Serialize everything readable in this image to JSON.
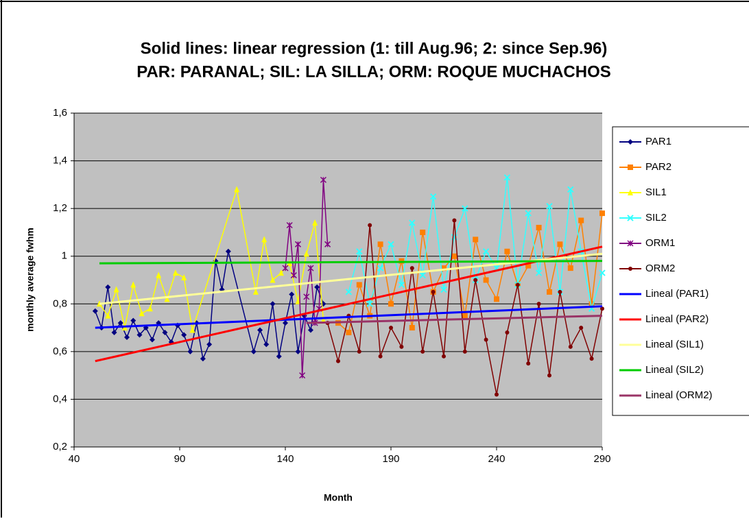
{
  "chart_data": {
    "type": "line",
    "title": "Solid lines: linear regression (1: till Aug.96; 2: since Sep.96)",
    "subtitle": "PAR: PARANAL; SIL: LA SILLA; ORM: ROQUE MUCHACHOS",
    "x_label": "Month",
    "y_label": "monthly average fwhm",
    "xlim": [
      40,
      290
    ],
    "xticks": [
      40,
      90,
      140,
      190,
      240,
      290
    ],
    "ylim": [
      0.2,
      1.6
    ],
    "yticks": [
      {
        "value": 0.2,
        "label": "0,2"
      },
      {
        "value": 0.4,
        "label": "0,4"
      },
      {
        "value": 0.6,
        "label": "0,6"
      },
      {
        "value": 0.8,
        "label": "0,8"
      },
      1,
      {
        "value": 1.2,
        "label": "1,2"
      },
      {
        "value": 1.4,
        "label": "1,4"
      },
      {
        "value": 1.6,
        "label": "1,6"
      }
    ],
    "grid": true,
    "legend": "right",
    "series": [
      {
        "name": "PAR1",
        "color": "#000080",
        "marker": "diamond",
        "x": [
          50,
          53,
          56,
          59,
          62,
          65,
          68,
          71,
          74,
          77,
          80,
          83,
          86,
          89,
          92,
          95,
          98,
          101,
          104,
          107,
          110,
          113,
          125,
          128,
          131,
          134,
          137,
          140,
          143,
          146,
          149,
          152,
          155,
          158
        ],
        "values": [
          0.77,
          0.7,
          0.87,
          0.68,
          0.72,
          0.66,
          0.73,
          0.67,
          0.7,
          0.65,
          0.72,
          0.68,
          0.64,
          0.71,
          0.67,
          0.6,
          0.72,
          0.57,
          0.63,
          0.98,
          0.86,
          1.02,
          0.6,
          0.69,
          0.63,
          0.8,
          0.58,
          0.72,
          0.84,
          0.6,
          0.75,
          0.69,
          0.87,
          0.8
        ]
      },
      {
        "name": "PAR2",
        "color": "#ff8000",
        "marker": "square",
        "x": [
          165,
          170,
          175,
          180,
          185,
          190,
          195,
          200,
          205,
          210,
          215,
          220,
          225,
          230,
          235,
          240,
          245,
          250,
          255,
          260,
          265,
          270,
          275,
          280,
          285,
          290
        ],
        "values": [
          0.72,
          0.68,
          0.88,
          0.75,
          1.05,
          0.8,
          0.98,
          0.7,
          1.1,
          0.85,
          0.95,
          1.0,
          0.75,
          1.07,
          0.9,
          0.82,
          1.02,
          0.88,
          0.96,
          1.12,
          0.85,
          1.05,
          0.95,
          1.15,
          0.8,
          1.18
        ]
      },
      {
        "name": "SIL1",
        "color": "#ffff00",
        "marker": "triangle",
        "x": [
          52,
          56,
          60,
          64,
          68,
          72,
          76,
          80,
          84,
          88,
          92,
          96,
          117,
          126,
          130,
          134,
          138,
          142,
          146,
          150,
          154,
          158
        ],
        "values": [
          0.8,
          0.75,
          0.86,
          0.7,
          0.88,
          0.76,
          0.78,
          0.92,
          0.82,
          0.93,
          0.91,
          0.69,
          1.28,
          0.85,
          1.07,
          0.9,
          0.93,
          0.97,
          0.81,
          1.01,
          1.14,
          0.73
        ]
      },
      {
        "name": "SIL2",
        "color": "#33ffff",
        "marker": "x",
        "x": [
          170,
          175,
          180,
          185,
          190,
          195,
          200,
          205,
          210,
          215,
          220,
          225,
          230,
          235,
          240,
          245,
          250,
          255,
          260,
          265,
          270,
          275,
          280,
          285,
          290
        ],
        "values": [
          0.85,
          1.02,
          0.8,
          0.95,
          1.05,
          0.88,
          1.14,
          0.92,
          1.25,
          0.86,
          1.08,
          1.2,
          0.9,
          1.02,
          0.95,
          1.33,
          0.88,
          1.18,
          0.93,
          1.21,
          0.85,
          1.28,
          1.02,
          0.78,
          0.93
        ]
      },
      {
        "name": "ORM1",
        "color": "#800080",
        "marker": "star",
        "x": [
          140,
          142,
          144,
          146,
          148,
          150,
          152,
          154,
          156,
          158,
          160
        ],
        "values": [
          0.95,
          1.13,
          0.92,
          1.05,
          0.5,
          0.83,
          0.95,
          0.72,
          0.78,
          1.32,
          1.05
        ]
      },
      {
        "name": "ORM2",
        "color": "#800000",
        "marker": "circle",
        "x": [
          160,
          165,
          170,
          175,
          180,
          185,
          190,
          195,
          200,
          205,
          210,
          215,
          220,
          225,
          230,
          235,
          240,
          245,
          250,
          255,
          260,
          265,
          270,
          275,
          280,
          285,
          290
        ],
        "values": [
          0.72,
          0.56,
          0.75,
          0.6,
          1.13,
          0.58,
          0.7,
          0.62,
          0.95,
          0.6,
          0.85,
          0.58,
          1.15,
          0.6,
          0.9,
          0.65,
          0.42,
          0.68,
          0.88,
          0.55,
          0.8,
          0.5,
          0.85,
          0.62,
          0.7,
          0.57,
          0.78
        ]
      },
      {
        "name": "Lineal (PAR1)",
        "color": "#0000ff",
        "marker": "none",
        "x": [
          50,
          290
        ],
        "values": [
          0.7,
          0.79
        ]
      },
      {
        "name": "Lineal (PAR2)",
        "color": "#ff0000",
        "marker": "none",
        "x": [
          50,
          290
        ],
        "values": [
          0.56,
          1.04
        ]
      },
      {
        "name": "Lineal (SIL1)",
        "color": "#ffff99",
        "marker": "none",
        "x": [
          52,
          290
        ],
        "values": [
          0.8,
          1.01
        ]
      },
      {
        "name": "Lineal (SIL2)",
        "color": "#00cc00",
        "marker": "none",
        "x": [
          52,
          290
        ],
        "values": [
          0.97,
          0.98
        ]
      },
      {
        "name": "Lineal (ORM2)",
        "color": "#993366",
        "marker": "none",
        "x": [
          150,
          290
        ],
        "values": [
          0.72,
          0.75
        ]
      }
    ]
  }
}
